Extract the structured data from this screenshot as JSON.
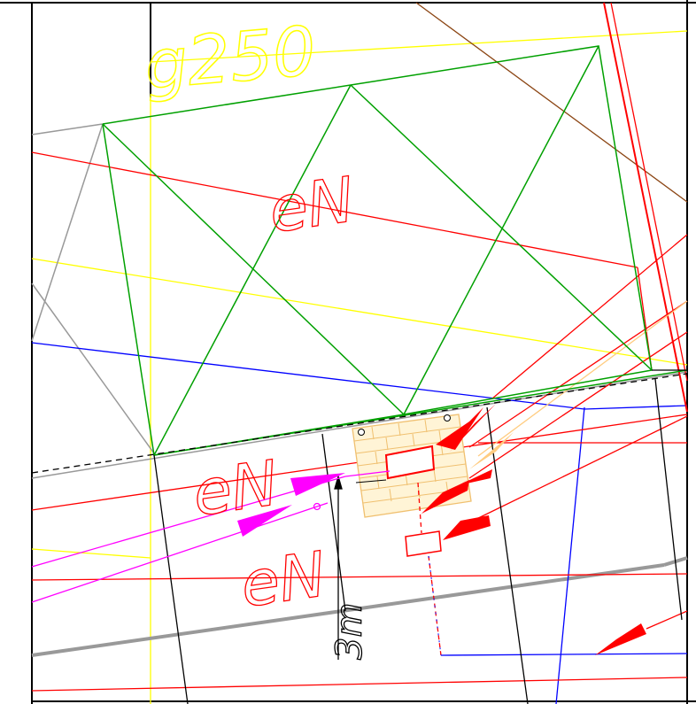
{
  "drawing": {
    "labels": {
      "top_code": "g250",
      "zone_upper": "eN",
      "zone_left": "eN",
      "zone_lower": "eN",
      "dimension": "3m"
    },
    "colors": {
      "background": "#ffffff",
      "frame": "#000000",
      "truss": "#00a000",
      "red_line": "#ff0000",
      "yellow_line": "#ffff00",
      "blue_line": "#0000ff",
      "magenta": "#ff00ff",
      "grey": "#999999",
      "brown": "#8b4513",
      "masonry": "#f0c070",
      "orange_arrow": "#ffcc80"
    }
  }
}
